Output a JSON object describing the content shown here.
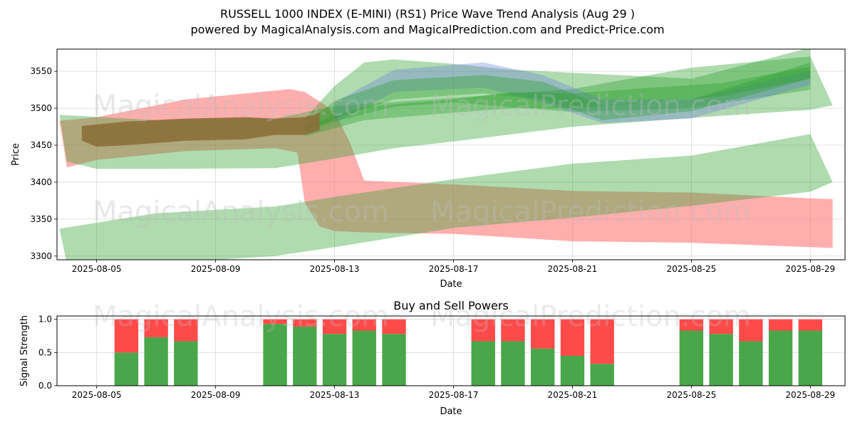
{
  "chart_data": [
    {
      "type": "area",
      "title": "RUSSELL 1000 INDEX (E-MINI) (RS1) Price Wave Trend Analysis (Aug 29 )",
      "subtitle": "powered by MagicalAnalysis.com and MagicalPrediction.com and Predict-Price.com",
      "xlabel": "Date",
      "ylabel": "Price",
      "xlim": [
        "2025-08-03T16:00",
        "2025-08-30T04:00"
      ],
      "ylim": [
        3295,
        3580
      ],
      "grid": true,
      "x_ticks": [
        "2025-08-05",
        "2025-08-09",
        "2025-08-13",
        "2025-08-17",
        "2025-08-21",
        "2025-08-25",
        "2025-08-29"
      ],
      "y_ticks": [
        3300,
        3350,
        3400,
        3450,
        3500,
        3550
      ],
      "watermarks": [
        "MagicalAnalysis.com",
        "MagicalPrediction.com"
      ],
      "colors": {
        "bullish": "#2ca02c",
        "bearish": "#ff6b6b",
        "neutral": "#8b6f3a",
        "blue": "#6b7ee0"
      },
      "bands": [
        {
          "color": "red",
          "upper": [
            [
              "2025-08-03T18:00",
              3483
            ],
            [
              "2025-08-05",
              3488
            ],
            [
              "2025-08-08",
              3512
            ],
            [
              "2025-08-11",
              3524
            ],
            [
              "2025-08-11T12:00",
              3526
            ],
            [
              "2025-08-12",
              3522
            ],
            [
              "2025-08-13",
              3496
            ],
            [
              "2025-08-13T12:00",
              3455
            ],
            [
              "2025-08-14",
              3402
            ],
            [
              "2025-08-17",
              3397
            ],
            [
              "2025-08-21",
              3388
            ],
            [
              "2025-08-25",
              3386
            ],
            [
              "2025-08-29",
              3378
            ],
            [
              "2025-08-29T18:00",
              3377
            ]
          ],
          "lower": [
            [
              "2025-08-29T18:00",
              3311
            ],
            [
              "2025-08-29",
              3312
            ],
            [
              "2025-08-25",
              3318
            ],
            [
              "2025-08-21",
              3320
            ],
            [
              "2025-08-17",
              3330
            ],
            [
              "2025-08-14",
              3332
            ],
            [
              "2025-08-13",
              3334
            ],
            [
              "2025-08-12T12:00",
              3340
            ],
            [
              "2025-08-12",
              3372
            ],
            [
              "2025-08-11T18:00",
              3440
            ],
            [
              "2025-08-11",
              3446
            ],
            [
              "2025-08-08",
              3442
            ],
            [
              "2025-08-05",
              3430
            ],
            [
              "2025-08-04",
              3420
            ]
          ]
        },
        {
          "color": "green",
          "upper": [
            [
              "2025-08-03T18:00",
              3337
            ],
            [
              "2025-08-07",
              3358
            ],
            [
              "2025-08-11",
              3367
            ],
            [
              "2025-08-13",
              3380
            ],
            [
              "2025-08-17",
              3404
            ],
            [
              "2025-08-21",
              3425
            ],
            [
              "2025-08-25",
              3436
            ],
            [
              "2025-08-29",
              3465
            ],
            [
              "2025-08-29T18:00",
              3400
            ]
          ],
          "lower": [
            [
              "2025-08-29T18:00",
              3400
            ],
            [
              "2025-08-29",
              3387
            ],
            [
              "2025-08-25",
              3368
            ],
            [
              "2025-08-21",
              3352
            ],
            [
              "2025-08-17",
              3338
            ],
            [
              "2025-08-13",
              3312
            ],
            [
              "2025-08-11",
              3300
            ],
            [
              "2025-08-07",
              3290
            ],
            [
              "2025-08-04",
              3290
            ]
          ]
        },
        {
          "color": "green",
          "upper": [
            [
              "2025-08-03T18:00",
              3491
            ],
            [
              "2025-08-07",
              3484
            ],
            [
              "2025-08-11",
              3486
            ],
            [
              "2025-08-13",
              3503
            ],
            [
              "2025-08-17",
              3514
            ],
            [
              "2025-08-21",
              3526
            ],
            [
              "2025-08-25",
              3555
            ],
            [
              "2025-08-29",
              3570
            ],
            [
              "2025-08-29T18:00",
              3504
            ]
          ],
          "lower": [
            [
              "2025-08-29T18:00",
              3504
            ],
            [
              "2025-08-29",
              3498
            ],
            [
              "2025-08-25",
              3487
            ],
            [
              "2025-08-21",
              3475
            ],
            [
              "2025-08-17",
              3455
            ],
            [
              "2025-08-15",
              3446
            ],
            [
              "2025-08-13",
              3432
            ],
            [
              "2025-08-11",
              3419
            ],
            [
              "2025-08-07",
              3418
            ],
            [
              "2025-08-05",
              3418
            ],
            [
              "2025-08-04",
              3428
            ]
          ]
        },
        {
          "color": "green",
          "upper": [
            [
              "2025-08-12",
              3486
            ],
            [
              "2025-08-13",
              3530
            ],
            [
              "2025-08-14",
              3562
            ],
            [
              "2025-08-15",
              3566
            ],
            [
              "2025-08-17",
              3560
            ],
            [
              "2025-08-19",
              3552
            ],
            [
              "2025-08-21",
              3548
            ],
            [
              "2025-08-25",
              3540
            ],
            [
              "2025-08-29",
              3582
            ]
          ],
          "lower": [
            [
              "2025-08-29",
              3525
            ],
            [
              "2025-08-25",
              3500
            ],
            [
              "2025-08-21",
              3495
            ],
            [
              "2025-08-17",
              3508
            ],
            [
              "2025-08-15",
              3502
            ],
            [
              "2025-08-13",
              3482
            ],
            [
              "2025-08-12",
              3470
            ]
          ]
        },
        {
          "color": "blue",
          "upper": [
            [
              "2025-08-13",
              3508
            ],
            [
              "2025-08-15",
              3552
            ],
            [
              "2025-08-18",
              3562
            ],
            [
              "2025-08-20",
              3545
            ],
            [
              "2025-08-22",
              3512
            ],
            [
              "2025-08-25",
              3512
            ],
            [
              "2025-08-29",
              3552
            ]
          ],
          "lower": [
            [
              "2025-08-29",
              3532
            ],
            [
              "2025-08-25",
              3486
            ],
            [
              "2025-08-22",
              3480
            ],
            [
              "2025-08-20",
              3508
            ],
            [
              "2025-08-18",
              3528
            ],
            [
              "2025-08-15",
              3522
            ],
            [
              "2025-08-13",
              3480
            ]
          ]
        },
        {
          "color": "green",
          "upper": [
            [
              "2025-08-12",
              3478
            ],
            [
              "2025-08-13",
              3510
            ],
            [
              "2025-08-15",
              3538
            ],
            [
              "2025-08-18",
              3545
            ],
            [
              "2025-08-20",
              3536
            ],
            [
              "2025-08-22",
              3504
            ],
            [
              "2025-08-25",
              3512
            ],
            [
              "2025-08-29",
              3562
            ]
          ],
          "lower": [
            [
              "2025-08-29",
              3540
            ],
            [
              "2025-08-25",
              3496
            ],
            [
              "2025-08-22",
              3484
            ],
            [
              "2025-08-20",
              3512
            ],
            [
              "2025-08-18",
              3520
            ],
            [
              "2025-08-15",
              3512
            ],
            [
              "2025-08-13",
              3486
            ],
            [
              "2025-08-12",
              3466
            ]
          ]
        },
        {
          "color": "green",
          "upper": [
            [
              "2025-08-12",
              3476
            ],
            [
              "2025-08-14",
              3502
            ],
            [
              "2025-08-17",
              3512
            ],
            [
              "2025-08-19",
              3522
            ],
            [
              "2025-08-21",
              3520
            ],
            [
              "2025-08-23",
              3526
            ],
            [
              "2025-08-26",
              3534
            ],
            [
              "2025-08-29",
              3556
            ]
          ],
          "lower": [
            [
              "2025-08-29",
              3540
            ],
            [
              "2025-08-26",
              3516
            ],
            [
              "2025-08-23",
              3506
            ],
            [
              "2025-08-21",
              3500
            ],
            [
              "2025-08-19",
              3500
            ],
            [
              "2025-08-17",
              3494
            ],
            [
              "2025-08-14",
              3484
            ],
            [
              "2025-08-12",
              3462
            ]
          ]
        },
        {
          "color": "neutral",
          "upper": [
            [
              "2025-08-04T12:00",
              3476
            ],
            [
              "2025-08-06",
              3482
            ],
            [
              "2025-08-08",
              3486
            ],
            [
              "2025-08-10",
              3488
            ],
            [
              "2025-08-11",
              3486
            ],
            [
              "2025-08-12",
              3488
            ],
            [
              "2025-08-12T12:00",
              3494
            ]
          ],
          "lower": [
            [
              "2025-08-12T12:00",
              3470
            ],
            [
              "2025-08-12",
              3464
            ],
            [
              "2025-08-11",
              3464
            ],
            [
              "2025-08-10",
              3458
            ],
            [
              "2025-08-08",
              3456
            ],
            [
              "2025-08-06",
              3450
            ],
            [
              "2025-08-05",
              3448
            ],
            [
              "2025-08-04T12:00",
              3456
            ]
          ]
        }
      ]
    },
    {
      "type": "bar",
      "title": "Buy and Sell Powers",
      "xlabel": "Date",
      "ylabel": "Signal Strength",
      "xlim": [
        "2025-08-03T16:00",
        "2025-08-30T04:00"
      ],
      "ylim": [
        0,
        1.05
      ],
      "grid": true,
      "x_ticks": [
        "2025-08-05",
        "2025-08-09",
        "2025-08-13",
        "2025-08-17",
        "2025-08-21",
        "2025-08-25",
        "2025-08-29"
      ],
      "y_ticks": [
        0.0,
        0.5,
        1.0
      ],
      "colors": {
        "buy": "#4aa64a",
        "sell": "#ff4a4a"
      },
      "dates": [
        "2025-08-06",
        "2025-08-07",
        "2025-08-08",
        "2025-08-11",
        "2025-08-12",
        "2025-08-13",
        "2025-08-14",
        "2025-08-15",
        "2025-08-18",
        "2025-08-19",
        "2025-08-20",
        "2025-08-21",
        "2025-08-22",
        "2025-08-25",
        "2025-08-26",
        "2025-08-27",
        "2025-08-28",
        "2025-08-29"
      ],
      "series": [
        {
          "values": [
            0.5,
            0.73,
            0.67,
            0.93,
            0.89,
            0.78,
            0.83,
            0.78,
            0.67,
            0.67,
            0.56,
            0.45,
            0.33,
            0.83,
            0.78,
            0.67,
            0.83,
            0.83
          ]
        },
        {
          "values": [
            0.5,
            0.27,
            0.33,
            0.07,
            0.11,
            0.22,
            0.17,
            0.22,
            0.33,
            0.33,
            0.44,
            0.55,
            0.67,
            0.17,
            0.22,
            0.33,
            0.17,
            0.17
          ]
        }
      ]
    }
  ]
}
